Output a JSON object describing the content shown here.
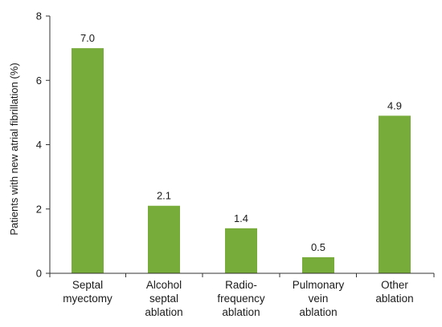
{
  "chart_data": {
    "type": "bar",
    "title": "",
    "xlabel": "",
    "ylabel": "Patients with new atrial fibrillation (%)",
    "ylim": [
      0,
      8
    ],
    "yticks": [
      "0",
      "2",
      "4",
      "6",
      "8"
    ],
    "grid": false,
    "bar_color": "#77ab3a",
    "categories": [
      [
        "Septal",
        "myectomy"
      ],
      [
        "Alcohol",
        "septal",
        "ablation"
      ],
      [
        "Radio-",
        "frequency",
        "ablation"
      ],
      [
        "Pulmonary",
        "vein",
        "ablation"
      ],
      [
        "Other",
        "ablation"
      ]
    ],
    "values": [
      7.0,
      2.1,
      1.4,
      0.5,
      4.9
    ],
    "value_labels": [
      "7.0",
      "2.1",
      "1.4",
      "0.5",
      "4.9"
    ]
  }
}
